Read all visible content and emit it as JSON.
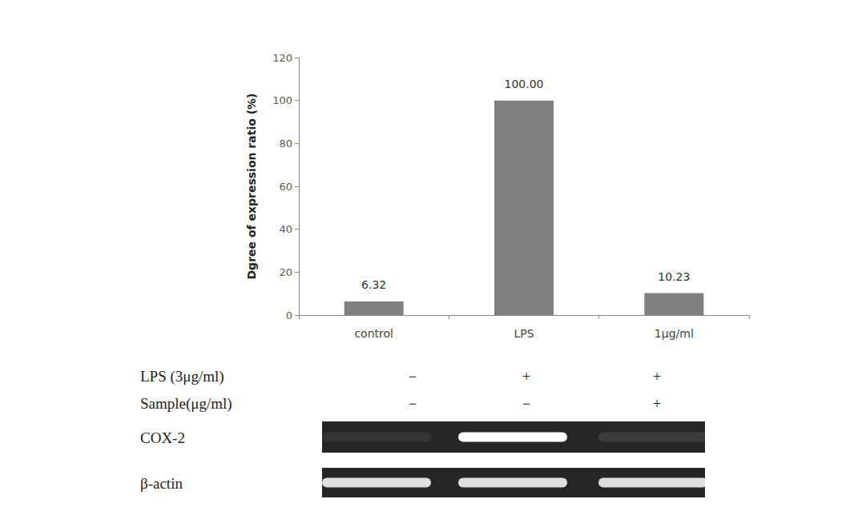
{
  "chart_data": {
    "type": "bar",
    "y_label": "Dgree of expression ratio (%)",
    "categories": [
      "control",
      "LPS",
      "1μg/ml"
    ],
    "values": [
      6.32,
      100.0,
      10.23
    ],
    "value_labels": [
      "6.32",
      "100.00",
      "10.23"
    ],
    "data_labels": true,
    "color": "#808080",
    "ylim": [
      0,
      120
    ],
    "yticks": [
      0,
      20,
      40,
      60,
      80,
      100,
      120
    ],
    "grid": false
  },
  "treatment_table": {
    "rows": [
      {
        "label": "LPS (3μg/ml)",
        "marks": [
          "−",
          "+",
          "+"
        ]
      },
      {
        "label": "Sample(μg/ml)",
        "marks": [
          "−",
          "−",
          "+"
        ]
      }
    ]
  },
  "gel": {
    "rows": [
      "COX-2",
      "β-actin"
    ]
  }
}
